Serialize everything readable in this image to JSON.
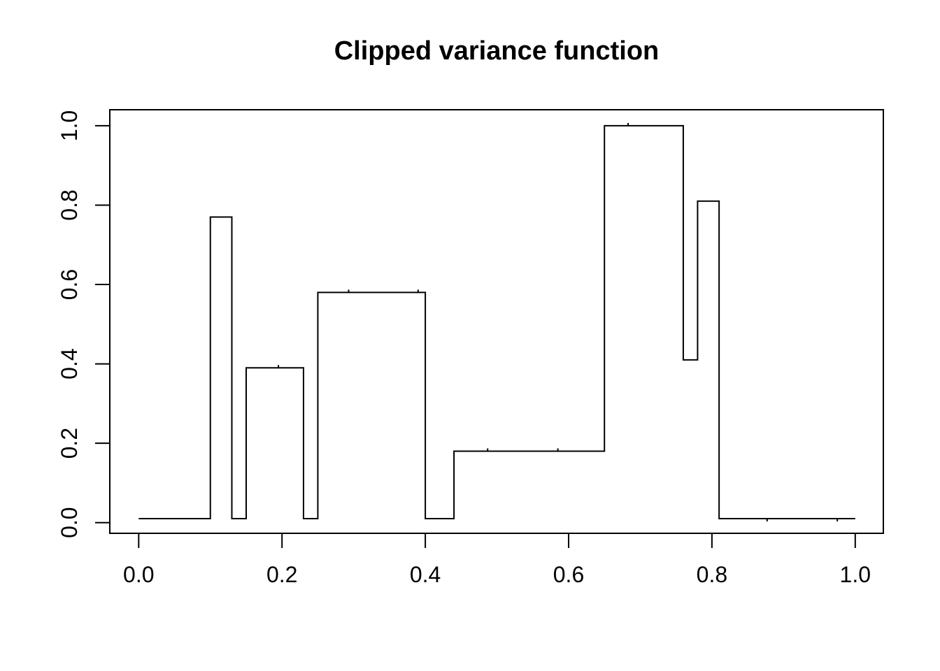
{
  "chart_data": {
    "type": "line",
    "line_style": "step-function (piecewise-constant)",
    "title": "Clipped variance function",
    "xlabel": "",
    "ylabel": "",
    "xlim": [
      0,
      1
    ],
    "ylim": [
      0,
      1
    ],
    "grid": false,
    "legend": "none",
    "line_color": "#000000",
    "axis_color": "#000000",
    "background_color": "#ffffff",
    "x_ticks": {
      "values": [
        0.0,
        0.2,
        0.4,
        0.6,
        0.8,
        1.0
      ],
      "labels": [
        "0.0",
        "0.2",
        "0.4",
        "0.6",
        "0.8",
        "1.0"
      ]
    },
    "y_ticks": {
      "values": [
        0.0,
        0.2,
        0.4,
        0.6,
        0.8,
        1.0
      ],
      "labels": [
        "0.0",
        "0.2",
        "0.4",
        "0.6",
        "0.8",
        "1.0"
      ]
    },
    "steps": [
      {
        "x_start": 0.0,
        "x_end": 0.1,
        "y": 0.01
      },
      {
        "x_start": 0.1,
        "x_end": 0.13,
        "y": 0.77
      },
      {
        "x_start": 0.13,
        "x_end": 0.15,
        "y": 0.01
      },
      {
        "x_start": 0.15,
        "x_end": 0.23,
        "y": 0.39
      },
      {
        "x_start": 0.23,
        "x_end": 0.25,
        "y": 0.01
      },
      {
        "x_start": 0.25,
        "x_end": 0.4,
        "y": 0.58
      },
      {
        "x_start": 0.4,
        "x_end": 0.44,
        "y": 0.01
      },
      {
        "x_start": 0.44,
        "x_end": 0.65,
        "y": 0.18
      },
      {
        "x_start": 0.65,
        "x_end": 0.76,
        "y": 1.0
      },
      {
        "x_start": 0.76,
        "x_end": 0.78,
        "y": 0.41
      },
      {
        "x_start": 0.78,
        "x_end": 0.81,
        "y": 0.81
      },
      {
        "x_start": 0.81,
        "x_end": 1.0,
        "y": 0.01
      }
    ],
    "segment_join_ticks_x": [
      0.195,
      0.293,
      0.39,
      0.487,
      0.585,
      0.683,
      0.877,
      0.975
    ]
  }
}
